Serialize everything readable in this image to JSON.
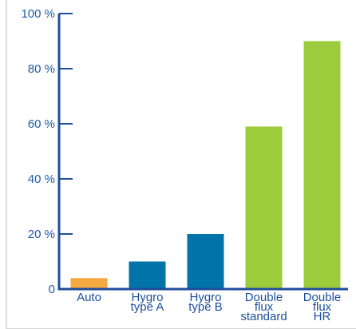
{
  "chart_data": {
    "type": "bar",
    "title": "",
    "xlabel": "",
    "ylabel": "",
    "ylim": [
      0,
      100
    ],
    "yticks": [
      "0",
      "20 %",
      "40 %",
      "60 %",
      "80 %",
      "100 %"
    ],
    "grid": false,
    "categories": [
      [
        "Auto"
      ],
      [
        "Hygro",
        "type A"
      ],
      [
        "Hygro",
        "type B"
      ],
      [
        "Double",
        "flux",
        "standard"
      ],
      [
        "Double",
        "flux",
        "HR"
      ]
    ],
    "values": [
      4,
      10,
      20,
      59,
      90
    ],
    "colors": [
      "#f7a941",
      "#0073a8",
      "#0073a8",
      "#9ccc3b",
      "#9ccc3b"
    ],
    "axis_color": "#1f4e9c",
    "tick_label_color": "#1f5aa8",
    "category_label_color": "#1b4f9b"
  }
}
